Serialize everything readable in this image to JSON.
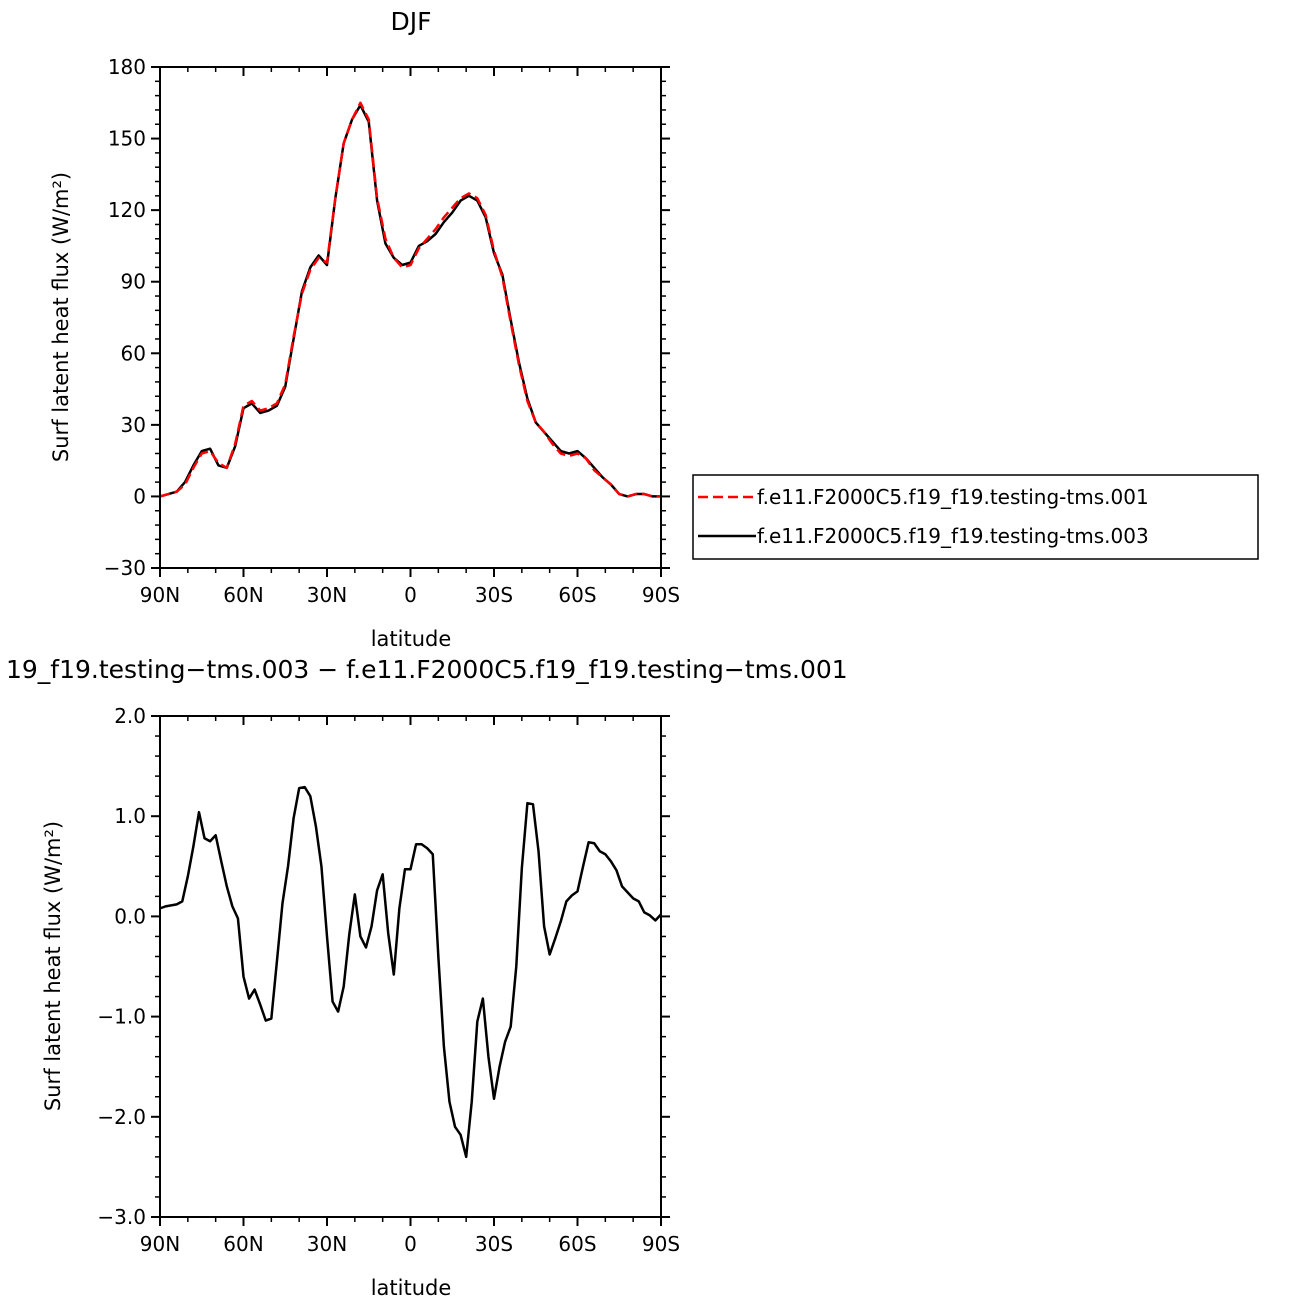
{
  "chart_data": [
    {
      "type": "line",
      "title": "DJF",
      "xlabel": "latitude",
      "ylabel": "Surf latent heat flux (W/m²)",
      "xlim": [
        90,
        -90
      ],
      "ylim": [
        -30,
        180
      ],
      "xticks": [
        90,
        60,
        30,
        0,
        -30,
        -60,
        -90
      ],
      "xtick_labels": [
        "90N",
        "60N",
        "30N",
        "0",
        "30S",
        "60S",
        "90S"
      ],
      "yticks": [
        -30,
        0,
        30,
        60,
        90,
        120,
        150,
        180
      ],
      "ytick_labels": [
        "−30",
        "0",
        "30",
        "60",
        "90",
        "120",
        "150",
        "180"
      ],
      "grid": false,
      "legend_position": "right",
      "x": [
        90,
        87,
        84,
        81,
        78,
        75,
        72,
        69,
        66,
        63,
        60,
        57,
        54,
        51,
        48,
        45,
        42,
        39,
        36,
        33,
        30,
        27,
        24,
        21,
        18,
        15,
        12,
        9,
        6,
        3,
        0,
        -3,
        -6,
        -9,
        -12,
        -15,
        -18,
        -21,
        -24,
        -27,
        -30,
        -33,
        -36,
        -39,
        -42,
        -45,
        -48,
        -51,
        -54,
        -57,
        -60,
        -63,
        -66,
        -69,
        -72,
        -75,
        -78,
        -81,
        -84,
        -87,
        -90
      ],
      "series": [
        {
          "name": "f.e11.F2000C5.f19_f19.testing-tms.001",
          "color": "#ff0000",
          "dash": "dashed",
          "values": [
            0,
            1,
            2,
            5,
            12,
            18,
            19,
            14,
            12,
            22,
            38,
            40,
            36,
            37,
            39,
            47,
            67,
            85,
            95,
            100,
            98,
            125,
            148,
            158,
            165,
            158,
            125,
            108,
            100,
            96,
            97,
            104,
            108,
            112,
            117,
            121,
            125,
            127,
            125,
            118,
            103,
            92,
            73,
            55,
            40,
            31,
            27,
            22,
            18,
            17,
            18,
            16,
            11,
            8,
            5,
            1,
            0,
            1,
            1,
            0,
            0
          ]
        },
        {
          "name": "f.e11.F2000C5.f19_f19.testing-tms.003",
          "color": "#000000",
          "dash": "solid",
          "values": [
            0,
            1,
            2,
            6,
            13,
            19,
            20,
            13,
            12,
            21,
            37,
            39,
            35,
            36,
            38,
            46,
            66,
            86,
            96,
            101,
            97,
            125,
            148,
            158,
            164,
            157,
            124,
            106,
            100,
            97,
            98,
            105,
            107,
            110,
            115,
            119,
            124,
            126,
            124,
            117,
            102,
            93,
            74,
            56,
            41,
            31,
            27,
            23,
            19,
            18,
            19,
            16,
            12,
            8,
            5,
            1,
            0,
            1,
            1,
            0,
            0
          ]
        }
      ]
    },
    {
      "type": "line",
      "title": "19_f19.testing−tms.003 − f.e11.F2000C5.f19_f19.testing−tms.001",
      "xlabel": "latitude",
      "ylabel": "Surf latent heat flux (W/m²)",
      "xlim": [
        90,
        -90
      ],
      "ylim": [
        -3.0,
        2.0
      ],
      "xticks": [
        90,
        60,
        30,
        0,
        -30,
        -60,
        -90
      ],
      "xtick_labels": [
        "90N",
        "60N",
        "30N",
        "0",
        "30S",
        "60S",
        "90S"
      ],
      "yticks": [
        -3.0,
        -2.0,
        -1.0,
        0.0,
        1.0,
        2.0
      ],
      "ytick_labels": [
        "−3.0",
        "−2.0",
        "−1.0",
        "0.0",
        "1.0",
        "2.0"
      ],
      "grid": false,
      "series": [
        {
          "color": "#000000",
          "dash": "solid",
          "x": [
            90,
            88,
            86,
            84,
            82,
            80,
            78,
            76,
            74,
            72,
            70,
            68,
            66,
            64,
            62,
            60,
            58,
            56,
            54,
            52,
            50,
            48,
            46,
            44,
            42,
            40,
            38,
            36,
            34,
            32,
            30,
            28,
            26,
            24,
            22,
            20,
            18,
            16,
            14,
            12,
            10,
            8,
            6,
            4,
            2,
            0,
            -2,
            -4,
            -6,
            -8,
            -10,
            -12,
            -14,
            -16,
            -18,
            -20,
            -22,
            -24,
            -26,
            -28,
            -30,
            -32,
            -34,
            -36,
            -38,
            -40,
            -42,
            -44,
            -46,
            -48,
            -50,
            -52,
            -54,
            -56,
            -58,
            -60,
            -62,
            -64,
            -66,
            -68,
            -70,
            -72,
            -74,
            -76,
            -78,
            -80,
            -82,
            -84,
            -86,
            -88,
            -90
          ],
          "values": [
            0.08,
            0.1,
            0.11,
            0.12,
            0.15,
            0.4,
            0.7,
            1.04,
            0.78,
            0.75,
            0.81,
            0.55,
            0.3,
            0.1,
            -0.02,
            -0.6,
            -0.82,
            -0.73,
            -0.88,
            -1.04,
            -1.02,
            -0.45,
            0.13,
            0.5,
            0.98,
            1.28,
            1.29,
            1.2,
            0.9,
            0.5,
            -0.2,
            -0.85,
            -0.95,
            -0.7,
            -0.18,
            0.22,
            -0.2,
            -0.31,
            -0.1,
            0.26,
            0.42,
            -0.17,
            -0.58,
            0.08,
            0.47,
            0.47,
            0.72,
            0.72,
            0.68,
            0.62,
            -0.4,
            -1.3,
            -1.85,
            -2.1,
            -2.18,
            -2.4,
            -1.85,
            -1.05,
            -0.82,
            -1.4,
            -1.82,
            -1.5,
            -1.25,
            -1.1,
            -0.5,
            0.48,
            1.13,
            1.12,
            0.65,
            -0.1,
            -0.38,
            -0.22,
            -0.05,
            0.15,
            0.21,
            0.25,
            0.5,
            0.74,
            0.73,
            0.65,
            0.62,
            0.55,
            0.46,
            0.3,
            0.24,
            0.18,
            0.15,
            0.04,
            0.01,
            -0.04,
            0.02
          ]
        }
      ]
    }
  ]
}
